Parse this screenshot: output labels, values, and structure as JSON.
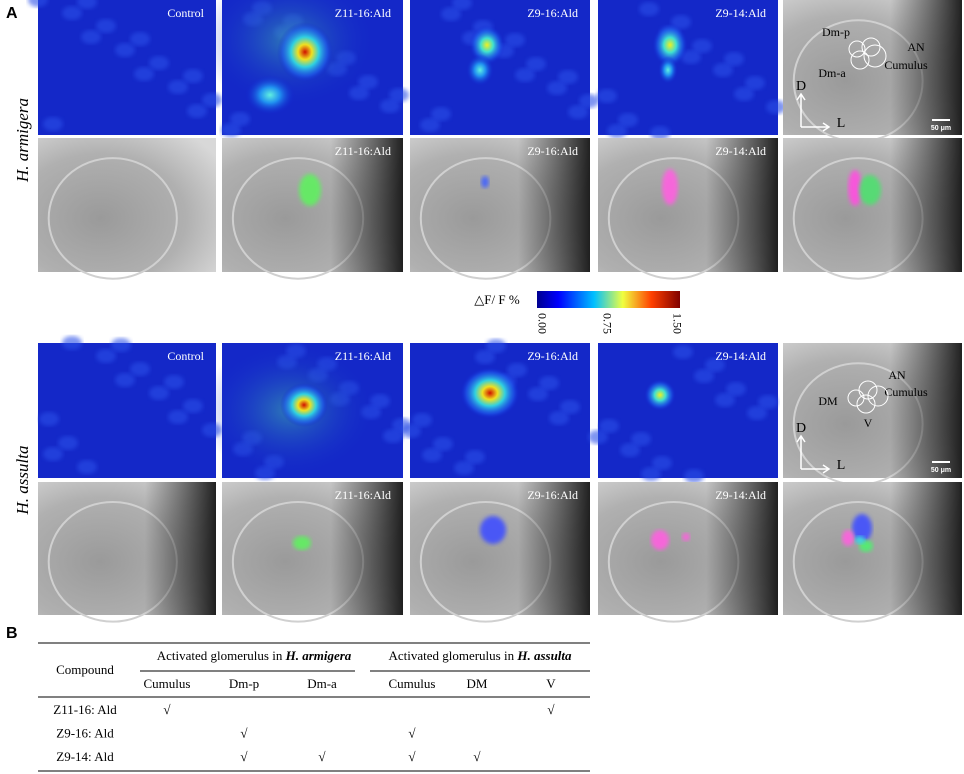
{
  "panel_a": {
    "label": "A",
    "species": [
      "H. armigera",
      "H. assulta"
    ],
    "armigera": {
      "response_labels": [
        "Control",
        "Z11-16:Ald",
        "Z9-16:Ald",
        "Z9-14:Ald"
      ],
      "overlay_labels": [
        "Z11-16:Ald",
        "Z9-16:Ald",
        "Z9-14:Ald"
      ],
      "anatomy_labels": [
        "Dm-p",
        "AN",
        "Dm-a",
        "Cumulus"
      ],
      "orientation": [
        "D",
        "L"
      ],
      "scale_bar": "50 μm"
    },
    "assulta": {
      "response_labels": [
        "Control",
        "Z11-16:Ald",
        "Z9-16:Ald",
        "Z9-14:Ald"
      ],
      "overlay_labels": [
        "Z11-16:Ald",
        "Z9-16:Ald",
        "Z9-14:Ald"
      ],
      "anatomy_labels": [
        "AN",
        "Cumulus",
        "DM",
        "V"
      ],
      "orientation": [
        "D",
        "L"
      ],
      "scale_bar": "50 μm"
    },
    "colorbar": {
      "title": "△F/ F  %",
      "ticks": [
        "0.00",
        "0.75",
        "1.50"
      ]
    }
  },
  "panel_b": {
    "label": "B",
    "table": {
      "compound_header": "Compound",
      "groups": [
        {
          "prefix": "Activated glomerulus in ",
          "species": "H. armigera",
          "columns": [
            "Cumulus",
            "Dm-p",
            "Dm-a"
          ]
        },
        {
          "prefix": "Activated glomerulus in ",
          "species": "H. assulta",
          "columns": [
            "Cumulus",
            "DM",
            "V"
          ]
        }
      ],
      "rows": [
        {
          "compound": "Z11-16: Ald",
          "marks": [
            "√",
            null,
            null,
            null,
            null,
            "√"
          ]
        },
        {
          "compound": "Z9-16: Ald",
          "marks": [
            null,
            "√",
            null,
            "√",
            null,
            null
          ]
        },
        {
          "compound": "Z9-14: Ald",
          "marks": [
            null,
            "√",
            "√",
            "√",
            "√",
            null
          ]
        }
      ]
    }
  }
}
